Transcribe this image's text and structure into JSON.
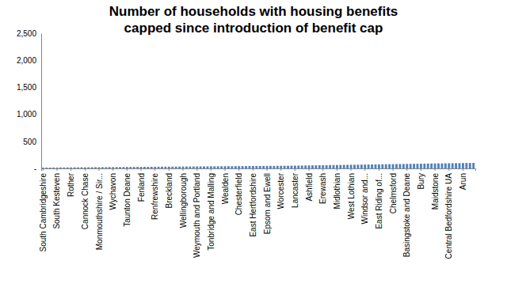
{
  "chart_data": {
    "type": "bar",
    "title": "Number of households with housing benefits capped since introduction of benefit cap",
    "categories": [
      "South Cambridgeshire",
      null,
      null,
      null,
      "South Kesteven",
      null,
      null,
      null,
      "Rother",
      null,
      null,
      null,
      "Cannock Chase",
      null,
      null,
      null,
      "Monmouthshire / Sir...",
      null,
      null,
      null,
      "Wychavon",
      null,
      null,
      null,
      "Taunton Deane",
      null,
      null,
      null,
      "Fenland",
      null,
      null,
      null,
      "Renfrewshire",
      null,
      null,
      null,
      "Breckland",
      null,
      null,
      null,
      "Wellingborough",
      null,
      null,
      null,
      "Weymouth and Portland",
      null,
      null,
      null,
      "Tonbridge and Malling",
      null,
      null,
      null,
      "Wealden",
      null,
      null,
      null,
      "Chesterfield",
      null,
      null,
      null,
      "East Hertfordshire",
      null,
      null,
      null,
      "Epsom and Ewell",
      null,
      null,
      null,
      "Worcester",
      null,
      null,
      null,
      "Lancaster",
      null,
      null,
      null,
      "Ashfield",
      null,
      null,
      null,
      "Erewash",
      null,
      null,
      null,
      "Midlothian",
      null,
      null,
      null,
      "West Lothian",
      null,
      null,
      null,
      "Windsor and...",
      null,
      null,
      null,
      "East Riding of...",
      null,
      null,
      null,
      "Chelmsford",
      null,
      null,
      null,
      "Basingstoke and Deane",
      null,
      null,
      null,
      "Bury",
      null,
      null,
      null,
      "Maidstone",
      null,
      null,
      null,
      "Central Bedfordshire UA",
      null,
      null,
      null,
      "Arun",
      null,
      null,
      null
    ],
    "values": [
      14,
      15,
      15,
      16,
      16,
      17,
      17,
      18,
      18,
      19,
      19,
      20,
      20,
      21,
      21,
      22,
      22,
      23,
      23,
      24,
      24,
      25,
      25,
      26,
      26,
      27,
      27,
      28,
      28,
      29,
      29,
      30,
      30,
      31,
      31,
      32,
      32,
      33,
      33,
      34,
      34,
      35,
      35,
      36,
      36,
      37,
      37,
      38,
      38,
      39,
      39,
      40,
      40,
      41,
      41,
      42,
      42,
      43,
      43,
      44,
      44,
      45,
      45,
      46,
      46,
      47,
      47,
      48,
      48,
      49,
      49,
      50,
      51,
      52,
      53,
      54,
      55,
      56,
      57,
      58,
      59,
      60,
      61,
      62,
      63,
      64,
      65,
      66,
      67,
      68,
      69,
      70,
      71,
      72,
      73,
      74,
      75,
      76,
      77,
      78,
      79,
      80,
      81,
      82,
      83,
      84,
      85,
      86,
      87,
      88,
      89,
      90,
      91,
      92,
      93,
      94,
      95,
      96,
      97,
      98,
      99,
      100,
      101,
      102
    ],
    "color": "#4f81bd",
    "ylim": [
      0,
      2500
    ],
    "yticks": [
      {
        "value": 0,
        "label": "-"
      },
      500,
      {
        "value": 1000,
        "label": "1,000"
      },
      {
        "value": 1500,
        "label": "1,500"
      },
      {
        "value": 2000,
        "label": "2,000"
      },
      {
        "value": 2500,
        "label": "2,500"
      }
    ],
    "grid": false
  }
}
